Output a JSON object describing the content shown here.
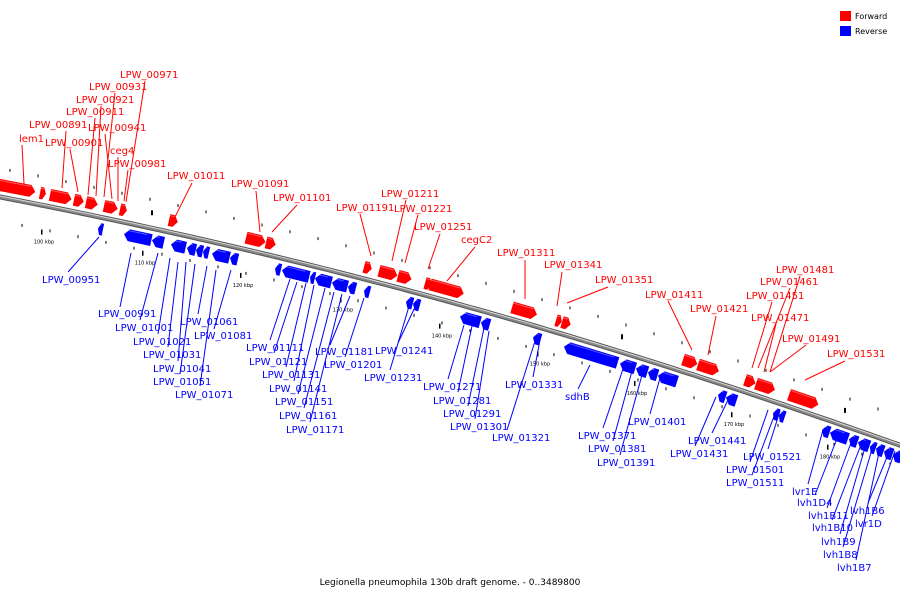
{
  "caption": "Legionella pneumophila 130b draft genome. - 0..3489800",
  "legend": {
    "forward": {
      "label": "Forward",
      "color": "#ff0000"
    },
    "reverse": {
      "label": "Reverse",
      "color": "#0000ff"
    }
  },
  "colors": {
    "forward": "#ff0000",
    "reverse": "#0000ff",
    "backbone": "#888888"
  },
  "scale_ticks": [
    {
      "label": "100 kbp",
      "pos_kbp": 100
    },
    {
      "label": "110 kbp",
      "pos_kbp": 110
    },
    {
      "label": "120 kbp",
      "pos_kbp": 120
    },
    {
      "label": "130 kbp",
      "pos_kbp": 130
    },
    {
      "label": "140 kbp",
      "pos_kbp": 140
    },
    {
      "label": "150 kbp",
      "pos_kbp": 150
    },
    {
      "label": "160 kbp",
      "pos_kbp": 160
    },
    {
      "label": "170 kbp",
      "pos_kbp": 170
    },
    {
      "label": "180 kbp",
      "pos_kbp": 180
    }
  ],
  "forward_genes": [
    "lem1",
    "LPW_00891",
    "LPW_00901",
    "LPW_00911",
    "LPW_00921",
    "LPW_00931",
    "LPW_00941",
    "LPW_00971",
    "ceg4",
    "LPW_00981",
    "LPW_01011",
    "LPW_01091",
    "LPW_01101",
    "LPW_01191",
    "LPW_01211",
    "LPW_01221",
    "LPW_01251",
    "cegC2",
    "LPW_01311",
    "LPW_01341",
    "LPW_01351",
    "LPW_01411",
    "LPW_01421",
    "LPW_01451",
    "LPW_01461",
    "LPW_01471",
    "LPW_01481",
    "LPW_01491",
    "LPW_01531"
  ],
  "reverse_genes": [
    "LPW_00951",
    "LPW_00991",
    "LPW_01001",
    "LPW_01021",
    "LPW_01031",
    "LPW_01041",
    "LPW_01051",
    "LPW_01061",
    "LPW_01071",
    "LPW_01081",
    "LPW_01111",
    "LPW_01121",
    "LPW_01131",
    "LPW_01141",
    "LPW_01151",
    "LPW_01161",
    "LPW_01171",
    "LPW_01181",
    "LPW_01201",
    "LPW_01231",
    "LPW_01241",
    "LPW_01271",
    "LPW_01281",
    "LPW_01291",
    "LPW_01301",
    "LPW_01321",
    "LPW_01331",
    "sdhB",
    "LPW_01371",
    "LPW_01381",
    "LPW_01391",
    "LPW_01401",
    "LPW_01431",
    "LPW_01441",
    "LPW_01501",
    "LPW_01511",
    "LPW_01521",
    "lvr1E",
    "lvh1D4",
    "lvh1B11",
    "lvh1B10",
    "lvh1B9",
    "lvh1B8",
    "lvh1B7",
    "lvh1B6",
    "lvr1D"
  ]
}
